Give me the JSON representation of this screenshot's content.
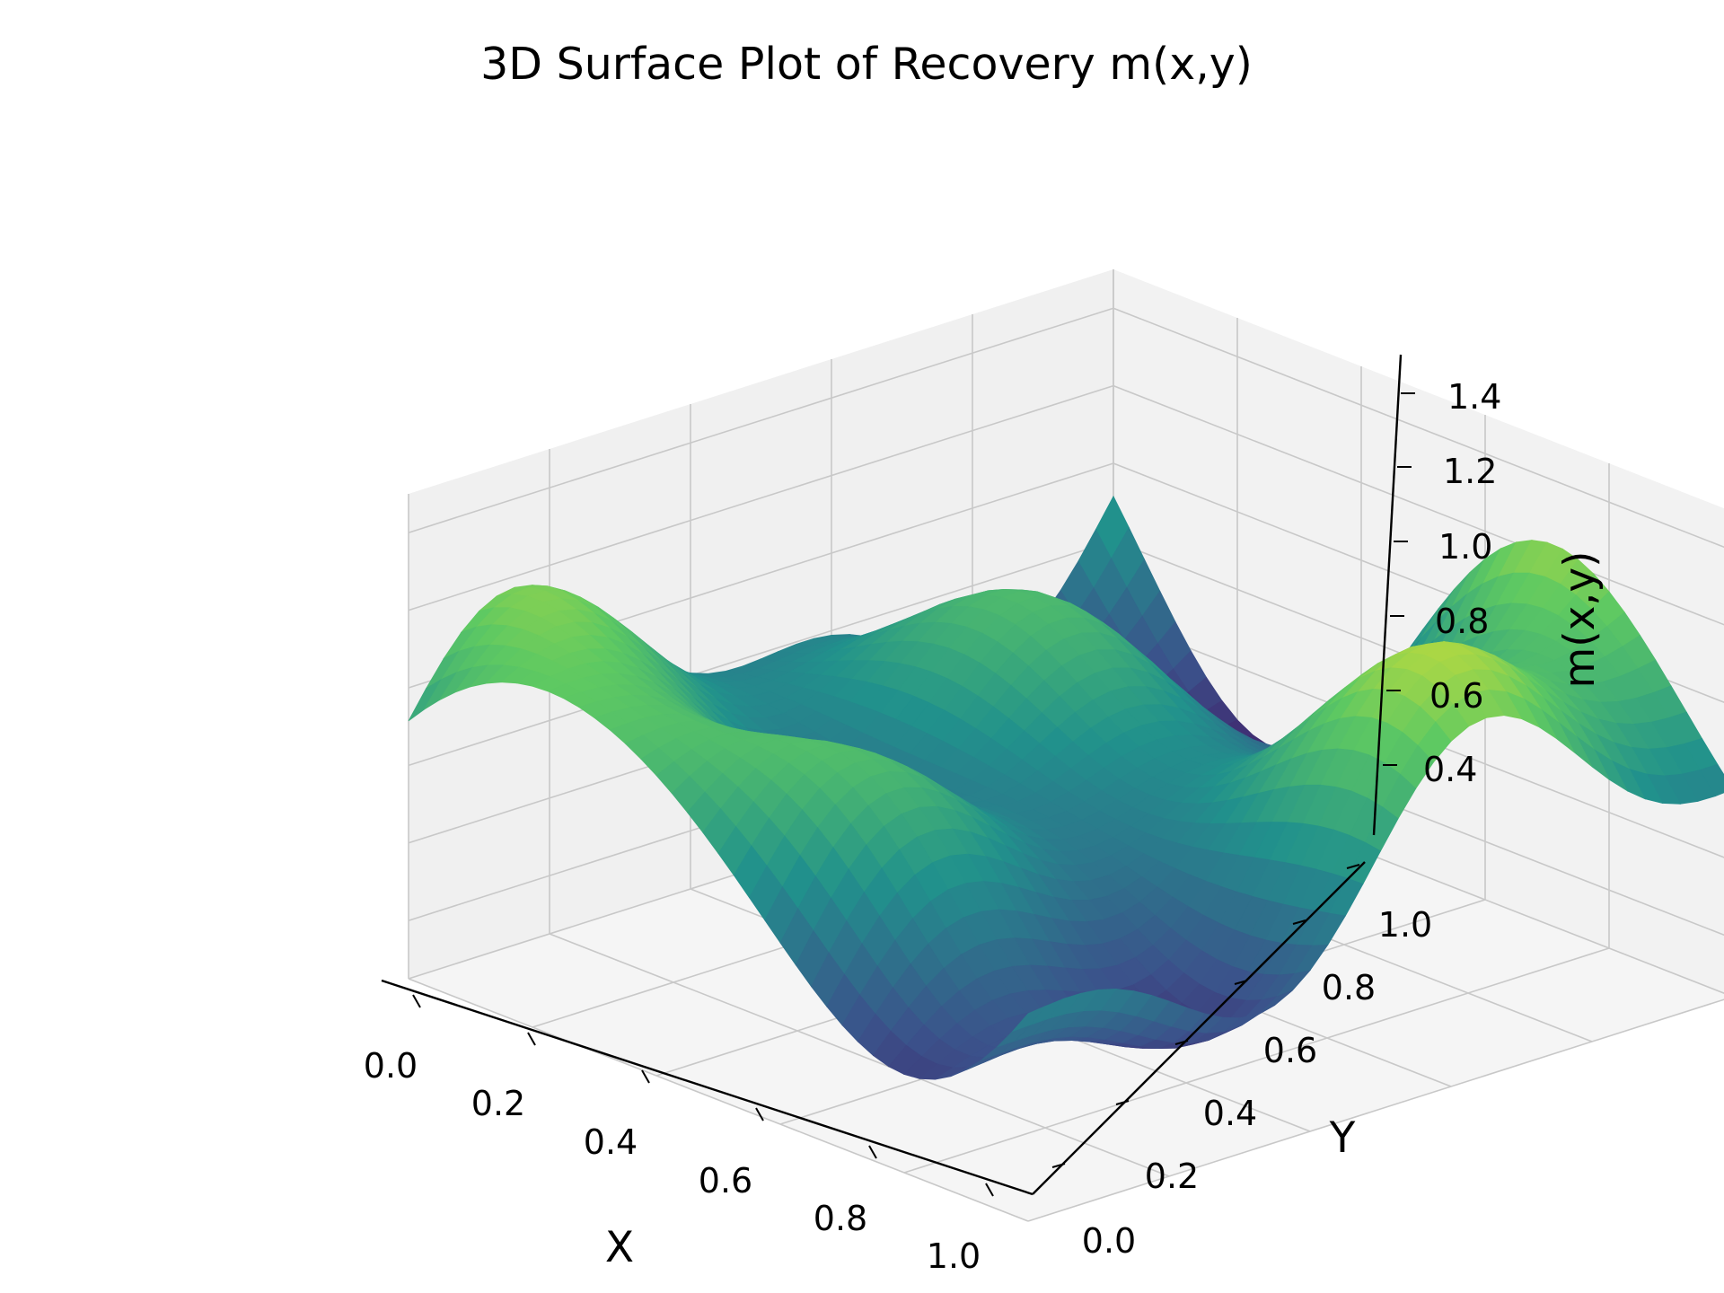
{
  "chart_data": {
    "type": "surface",
    "title": "3D Surface Plot of Recovery m(x,y)",
    "xlabel": "X",
    "ylabel": "Y",
    "zlabel": "m(x,y)",
    "xlim": [
      0,
      1
    ],
    "ylim": [
      0,
      1
    ],
    "zlim": [
      0.25,
      1.5
    ],
    "x_ticks": [
      "0.0",
      "0.2",
      "0.4",
      "0.6",
      "0.8",
      "1.0"
    ],
    "y_ticks": [
      "0.0",
      "0.2",
      "0.4",
      "0.6",
      "0.8",
      "1.0"
    ],
    "z_ticks": [
      "0.4",
      "0.6",
      "0.8",
      "1.0",
      "1.2",
      "1.4"
    ],
    "colormap": "viridis",
    "grid": true,
    "surface_grid": {
      "x": [
        0.0,
        0.1,
        0.2,
        0.3,
        0.4,
        0.5,
        0.6,
        0.7,
        0.8,
        0.9,
        1.0
      ],
      "y": [
        0.0,
        0.1,
        0.2,
        0.3,
        0.4,
        0.5,
        0.6,
        0.7,
        0.8,
        0.9,
        1.0
      ],
      "z_approx_note_free": true,
      "description_free": true
    }
  }
}
